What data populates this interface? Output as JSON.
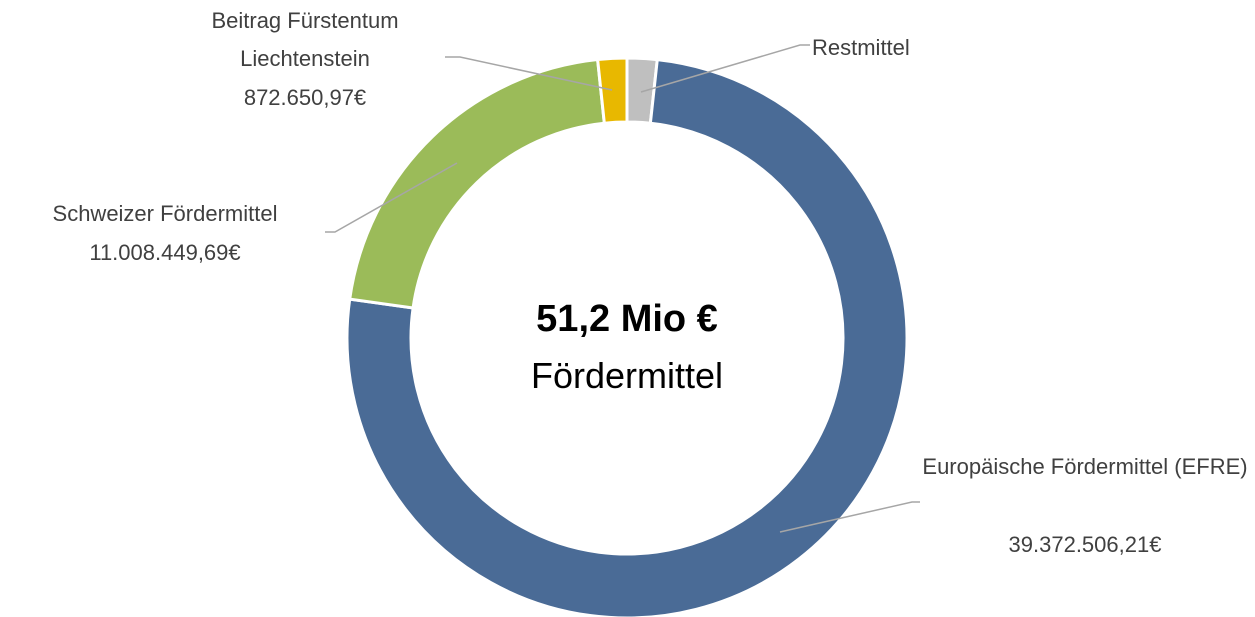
{
  "chart_data": {
    "type": "donut",
    "categories": [
      "Restmittel",
      "Europäische Fördermittel (EFRE)",
      "Schweizer Fördermittel",
      "Beitrag Fürstentum Liechtenstein"
    ],
    "values": [
      900000,
      39372506.21,
      11008449.69,
      872650.97
    ],
    "value_labels": [
      null,
      "39.372.506,21€",
      "11.008.449,69€",
      "872.650,97€"
    ],
    "colors": [
      "#bfbfbf",
      "#4a6b96",
      "#9bbb59",
      "#e8b800"
    ],
    "annotations": [
      "51,2 Mio €",
      "Fördermittel"
    ]
  }
}
